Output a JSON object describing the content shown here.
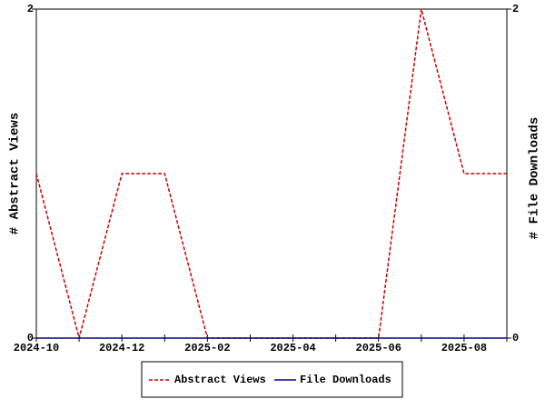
{
  "chart_data": {
    "type": "line",
    "categories": [
      "2024-10",
      null,
      "2024-12",
      null,
      "2025-02",
      null,
      "2025-04",
      null,
      "2025-06",
      null,
      "2025-08",
      null
    ],
    "y_label": "# Abstract Views",
    "y2_label": "# File Downloads",
    "series": [
      {
        "name": "Abstract Views",
        "color": "#cc0000",
        "dash": true,
        "values": [
          1,
          0,
          1,
          1,
          0,
          0,
          0,
          0,
          0,
          2,
          1,
          1
        ]
      },
      {
        "name": "File Downloads",
        "color": "#00008b",
        "dash": false,
        "axis": "y2",
        "values": [
          0,
          0,
          0,
          0,
          0,
          0,
          0,
          0,
          0,
          0,
          0,
          0
        ]
      }
    ],
    "ylim": [
      0,
      2
    ],
    "yticks": [
      0,
      2
    ],
    "y2lim": [
      0,
      2
    ],
    "y2ticks": [
      0,
      2
    ],
    "grid": false,
    "legend": "bottom"
  }
}
